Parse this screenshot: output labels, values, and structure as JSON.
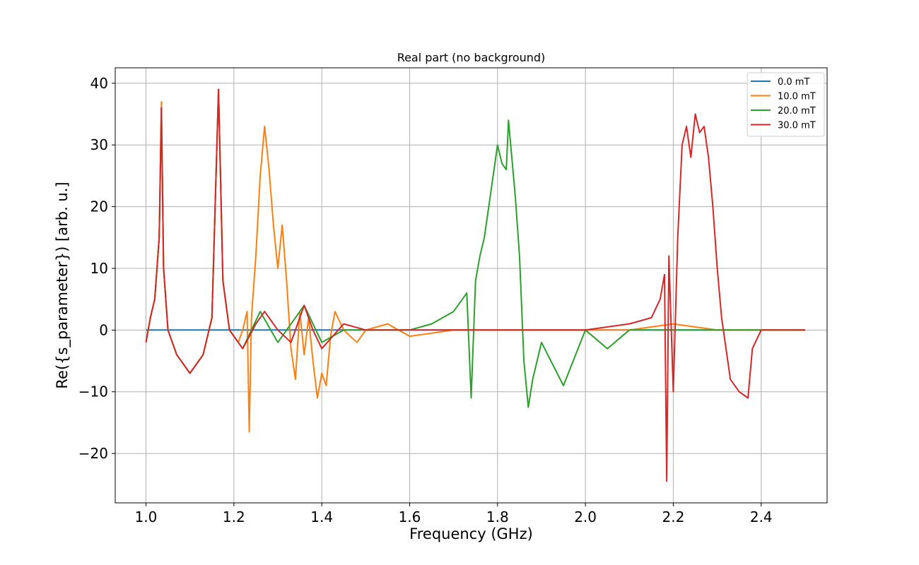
{
  "chart_data": {
    "type": "line",
    "title": "Real part (no background)",
    "xlabel": "Frequency (GHz)",
    "ylabel": "Re({s_parameter}) [arb. u.]",
    "xlim": [
      0.93,
      2.55
    ],
    "ylim": [
      -28,
      42.5
    ],
    "xticks": [
      1.0,
      1.2,
      1.4,
      1.6,
      1.8,
      2.0,
      2.2,
      2.4
    ],
    "xtick_labels": [
      "1.0",
      "1.2",
      "1.4",
      "1.6",
      "1.8",
      "2.0",
      "2.2",
      "2.4"
    ],
    "yticks": [
      -20,
      -10,
      0,
      10,
      20,
      30,
      40
    ],
    "ytick_labels": [
      "−20",
      "−10",
      "0",
      "10",
      "20",
      "30",
      "40"
    ],
    "grid": true,
    "legend_position": "top-right",
    "series": [
      {
        "name": "0.0 mT",
        "color": "#1f77b4",
        "x": [
          1.0,
          1.17,
          1.5,
          2.0,
          2.5
        ],
        "y": [
          0,
          0,
          0,
          0,
          0
        ]
      },
      {
        "name": "10.0 mT",
        "color": "#ff7f0e",
        "x": [
          1.0,
          1.01,
          1.02,
          1.03,
          1.035,
          1.04,
          1.05,
          1.07,
          1.1,
          1.13,
          1.15,
          1.165,
          1.175,
          1.19,
          1.2,
          1.21,
          1.22,
          1.23,
          1.235,
          1.24,
          1.25,
          1.26,
          1.27,
          1.28,
          1.29,
          1.3,
          1.31,
          1.32,
          1.33,
          1.34,
          1.35,
          1.36,
          1.37,
          1.38,
          1.39,
          1.4,
          1.41,
          1.42,
          1.43,
          1.45,
          1.48,
          1.5,
          1.55,
          1.6,
          1.7,
          1.8,
          1.9,
          2.0,
          2.1,
          2.2,
          2.3,
          2.4,
          2.5
        ],
        "y": [
          -2,
          2,
          5,
          15,
          37,
          10,
          0,
          -4,
          -7,
          -4,
          2,
          39,
          8,
          0,
          -1,
          -2,
          0,
          3,
          -16.5,
          2,
          12,
          25,
          33,
          26,
          17,
          10,
          17,
          8,
          -3,
          -8,
          3,
          -4,
          2,
          -5,
          -11,
          -7,
          -9,
          -1,
          3,
          0,
          -2,
          0,
          1,
          -1,
          0,
          0,
          0,
          0,
          0,
          1,
          0,
          0,
          0
        ]
      },
      {
        "name": "20.0 mT",
        "color": "#2ca02c",
        "x": [
          1.0,
          1.01,
          1.02,
          1.03,
          1.035,
          1.04,
          1.05,
          1.07,
          1.1,
          1.13,
          1.15,
          1.165,
          1.175,
          1.19,
          1.22,
          1.26,
          1.3,
          1.36,
          1.4,
          1.45,
          1.5,
          1.55,
          1.6,
          1.65,
          1.7,
          1.73,
          1.74,
          1.75,
          1.76,
          1.77,
          1.78,
          1.79,
          1.8,
          1.81,
          1.82,
          1.825,
          1.83,
          1.84,
          1.85,
          1.86,
          1.87,
          1.88,
          1.9,
          1.95,
          2.0,
          2.05,
          2.1,
          2.2,
          2.3,
          2.4,
          2.5
        ],
        "y": [
          -2,
          2,
          5,
          15,
          36,
          10,
          0,
          -4,
          -7,
          -4,
          2,
          39,
          8,
          0,
          -3,
          3,
          -2,
          4,
          -2,
          0,
          0,
          0,
          0,
          1,
          3,
          6,
          -11,
          8,
          12,
          15,
          20,
          25,
          30,
          27,
          26,
          34,
          30,
          22,
          12,
          -5,
          -12.5,
          -8,
          -2,
          -9,
          0,
          -3,
          0,
          0,
          0,
          0,
          0
        ]
      },
      {
        "name": "30.0 mT",
        "color": "#d62728",
        "x": [
          1.0,
          1.01,
          1.02,
          1.03,
          1.035,
          1.04,
          1.05,
          1.07,
          1.1,
          1.13,
          1.15,
          1.165,
          1.175,
          1.19,
          1.22,
          1.25,
          1.27,
          1.3,
          1.33,
          1.36,
          1.38,
          1.4,
          1.45,
          1.5,
          1.6,
          1.7,
          1.8,
          1.9,
          2.0,
          2.1,
          2.15,
          2.17,
          2.18,
          2.185,
          2.19,
          2.2,
          2.21,
          2.22,
          2.23,
          2.24,
          2.25,
          2.26,
          2.27,
          2.28,
          2.29,
          2.3,
          2.31,
          2.33,
          2.35,
          2.37,
          2.38,
          2.4,
          2.45,
          2.5
        ],
        "y": [
          -2,
          2,
          5,
          15,
          36,
          10,
          0,
          -4,
          -7,
          -4,
          2,
          39,
          8,
          0,
          -3,
          1,
          3,
          0,
          -2,
          4,
          0,
          -3,
          1,
          0,
          0,
          0,
          0,
          0,
          0,
          1,
          2,
          5,
          9,
          -24.5,
          12,
          -10,
          15,
          30,
          33,
          28,
          35,
          32,
          33,
          28,
          20,
          10,
          2,
          -8,
          -10,
          -11,
          -3,
          0,
          0,
          0
        ]
      }
    ]
  }
}
